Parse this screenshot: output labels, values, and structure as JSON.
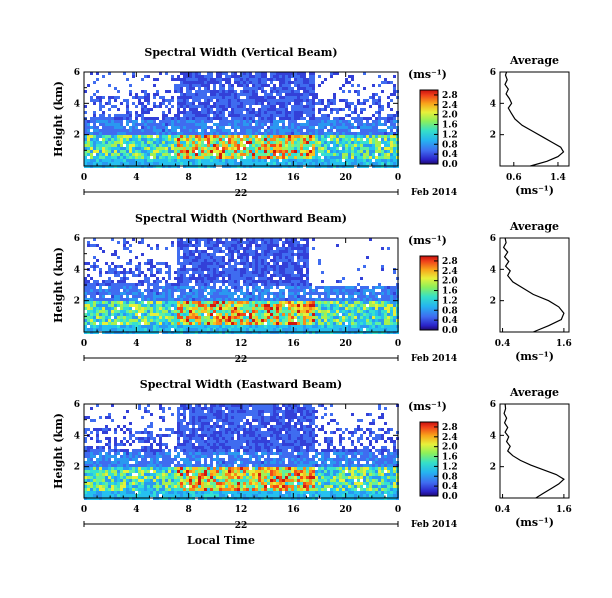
{
  "chart_data": [
    {
      "type": "heatmap",
      "title": "Spectral Width (Vertical Beam)",
      "ylabel": "Height (km)",
      "xticks": [
        "0",
        "4",
        "8",
        "12",
        "16",
        "20",
        "0"
      ],
      "yticks": [
        "2",
        "4",
        "6"
      ],
      "xlim": [
        0,
        24
      ],
      "ylim": [
        0,
        6
      ],
      "date_label": "22",
      "date_suffix": "Feb 2014",
      "colorbar": {
        "label": "(ms⁻¹)",
        "ticks": [
          "0.0",
          "0.4",
          "0.8",
          "1.2",
          "1.6",
          "2.0",
          "2.4",
          "2.8"
        ],
        "range": [
          0,
          3.0
        ]
      },
      "average": {
        "title": "Average",
        "xlabel": "(ms⁻¹)",
        "xticks": [
          "0.6",
          "1.4"
        ],
        "xtick_values": [
          0.6,
          1.4
        ],
        "xlim": [
          0.35,
          1.6
        ],
        "yticks": [
          "2",
          "4",
          "6"
        ],
        "profile": [
          [
            0.9,
            0.0
          ],
          [
            1.2,
            0.3
          ],
          [
            1.4,
            0.6
          ],
          [
            1.5,
            0.9
          ],
          [
            1.45,
            1.2
          ],
          [
            1.3,
            1.5
          ],
          [
            1.15,
            1.8
          ],
          [
            0.95,
            2.2
          ],
          [
            0.75,
            2.6
          ],
          [
            0.62,
            3.0
          ],
          [
            0.55,
            3.4
          ],
          [
            0.5,
            3.7
          ],
          [
            0.56,
            4.0
          ],
          [
            0.52,
            4.3
          ],
          [
            0.46,
            4.6
          ],
          [
            0.5,
            4.9
          ],
          [
            0.44,
            5.2
          ],
          [
            0.48,
            5.5
          ],
          [
            0.45,
            5.8
          ],
          [
            0.47,
            6.0
          ]
        ]
      }
    },
    {
      "type": "heatmap",
      "title": "Spectral Width (Northward Beam)",
      "ylabel": "Height (km)",
      "xticks": [
        "0",
        "4",
        "8",
        "12",
        "16",
        "20",
        "0"
      ],
      "yticks": [
        "2",
        "4",
        "6"
      ],
      "xlim": [
        0,
        24
      ],
      "ylim": [
        0,
        6
      ],
      "date_label": "22",
      "date_suffix": "Feb 2014",
      "colorbar": {
        "label": "(ms⁻¹)",
        "ticks": [
          "0.0",
          "0.4",
          "0.8",
          "1.2",
          "1.6",
          "2.0",
          "2.4",
          "2.8"
        ],
        "range": [
          0,
          3.0
        ]
      },
      "average": {
        "title": "Average",
        "xlabel": "(ms⁻¹)",
        "xticks": [
          "0.4",
          "1.6"
        ],
        "xtick_values": [
          0.4,
          1.6
        ],
        "xlim": [
          0.35,
          1.7
        ],
        "yticks": [
          "2",
          "4",
          "6"
        ],
        "profile": [
          [
            1.0,
            0.0
          ],
          [
            1.3,
            0.4
          ],
          [
            1.55,
            0.8
          ],
          [
            1.6,
            1.2
          ],
          [
            1.5,
            1.6
          ],
          [
            1.3,
            2.0
          ],
          [
            1.0,
            2.4
          ],
          [
            0.8,
            2.8
          ],
          [
            0.6,
            3.2
          ],
          [
            0.5,
            3.6
          ],
          [
            0.55,
            3.9
          ],
          [
            0.46,
            4.2
          ],
          [
            0.52,
            4.5
          ],
          [
            0.44,
            4.8
          ],
          [
            0.5,
            5.1
          ],
          [
            0.42,
            5.4
          ],
          [
            0.47,
            5.7
          ],
          [
            0.45,
            6.0
          ]
        ]
      }
    },
    {
      "type": "heatmap",
      "title": "Spectral Width (Eastward Beam)",
      "ylabel": "Height (km)",
      "xlabel": "Local Time",
      "xticks": [
        "0",
        "4",
        "8",
        "12",
        "16",
        "20",
        "0"
      ],
      "yticks": [
        "2",
        "4",
        "6"
      ],
      "xlim": [
        0,
        24
      ],
      "ylim": [
        0,
        6
      ],
      "date_label": "22",
      "date_suffix": "Feb 2014",
      "colorbar": {
        "label": "(ms⁻¹)",
        "ticks": [
          "0.0",
          "0.4",
          "0.8",
          "1.2",
          "1.6",
          "2.0",
          "2.4",
          "2.8"
        ],
        "range": [
          0,
          3.0
        ]
      },
      "average": {
        "title": "Average",
        "xlabel": "(ms⁻¹)",
        "xticks": [
          "0.4",
          "1.6"
        ],
        "xtick_values": [
          0.4,
          1.6
        ],
        "xlim": [
          0.35,
          1.7
        ],
        "yticks": [
          "2",
          "4",
          "6"
        ],
        "profile": [
          [
            1.05,
            0.0
          ],
          [
            1.2,
            0.3
          ],
          [
            1.35,
            0.6
          ],
          [
            1.5,
            0.9
          ],
          [
            1.6,
            1.2
          ],
          [
            1.45,
            1.5
          ],
          [
            1.2,
            1.8
          ],
          [
            0.95,
            2.1
          ],
          [
            0.75,
            2.4
          ],
          [
            0.6,
            2.7
          ],
          [
            0.5,
            3.0
          ],
          [
            0.55,
            3.3
          ],
          [
            0.48,
            3.6
          ],
          [
            0.52,
            3.9
          ],
          [
            0.45,
            4.2
          ],
          [
            0.5,
            4.5
          ],
          [
            0.44,
            4.8
          ],
          [
            0.48,
            5.1
          ],
          [
            0.43,
            5.4
          ],
          [
            0.46,
            5.7
          ],
          [
            0.45,
            6.0
          ]
        ]
      }
    }
  ]
}
